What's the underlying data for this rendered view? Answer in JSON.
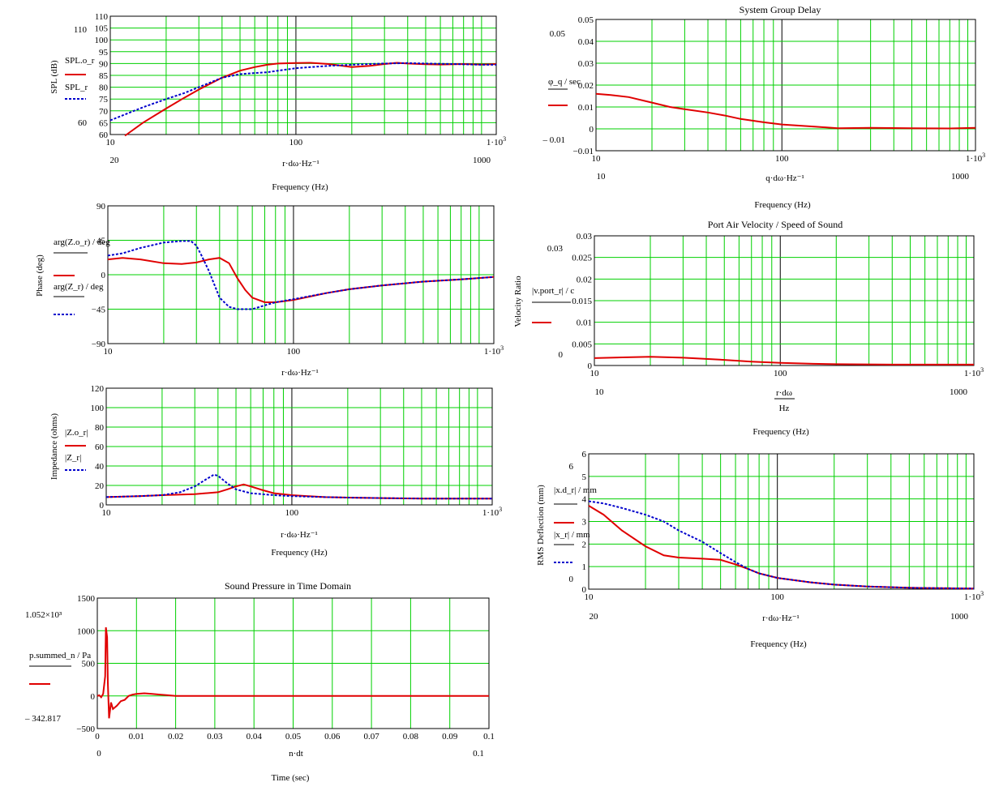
{
  "chart_data": [
    {
      "id": "spl",
      "type": "line",
      "xscale": "log",
      "xlim": [
        10,
        1200
      ],
      "ylim": [
        60,
        110
      ],
      "grid": true,
      "xticks": [
        "10",
        "100",
        "1·10³"
      ],
      "yticks": [
        "60",
        "65",
        "70",
        "75",
        "80",
        "85",
        "90",
        "95",
        "100",
        "105",
        "110"
      ],
      "ymarks": [
        "110",
        "60"
      ],
      "xmarks": [
        "20",
        "1000"
      ],
      "xlabel": "r·dω·Hz⁻¹",
      "xlabel2": "Frequency (Hz)",
      "ylabel": "SPL (dB)",
      "title": "",
      "legend": [
        "SPL.o_r",
        "SPL_r"
      ],
      "series": [
        {
          "name": "SPL.o_r",
          "color": "#e00000",
          "style": "solid",
          "x": [
            12,
            15,
            20,
            25,
            30,
            40,
            50,
            60,
            70,
            80,
            100,
            120,
            150,
            200,
            250,
            300,
            350,
            400,
            500,
            600,
            800,
            1000,
            1200
          ],
          "y": [
            59.5,
            65,
            71,
            75.5,
            79,
            84,
            87,
            88.5,
            89.5,
            90,
            90.2,
            90.3,
            89.8,
            88.5,
            89,
            89.8,
            90.3,
            90,
            89.7,
            89.6,
            89.8,
            89.6,
            89.8
          ]
        },
        {
          "name": "SPL_r",
          "color": "#0000cc",
          "style": "dashed",
          "x": [
            10,
            12,
            15,
            20,
            25,
            30,
            40,
            50,
            60,
            70,
            80,
            100,
            120,
            150,
            200,
            250,
            300,
            400,
            500,
            700,
            1000,
            1200
          ],
          "y": [
            66,
            68.5,
            71.5,
            75,
            77.5,
            80,
            84,
            85.5,
            86,
            86.3,
            87,
            88,
            88.5,
            89,
            89.5,
            89.8,
            90,
            90.2,
            90,
            89.8,
            89.5,
            89.5
          ]
        }
      ]
    },
    {
      "id": "phase",
      "type": "line",
      "xscale": "log",
      "xlim": [
        10,
        1200
      ],
      "ylim": [
        -90,
        90
      ],
      "grid": true,
      "xticks": [
        "10",
        "100",
        "1·10³"
      ],
      "yticks": [
        "-90",
        "-45",
        "0",
        "45",
        "90"
      ],
      "xlabel": "r·dω·Hz⁻¹",
      "ylabel": "Phase (deg)",
      "legend": [
        "arg(Z.o_r) / deg",
        "arg(Z_r) / deg"
      ],
      "series": [
        {
          "name": "arg(Z.o_r)/deg",
          "color": "#e00000",
          "style": "solid",
          "x": [
            10,
            12,
            15,
            20,
            25,
            30,
            35,
            40,
            45,
            50,
            55,
            60,
            70,
            80,
            100,
            150,
            200,
            300,
            500,
            800,
            1200
          ],
          "y": [
            20,
            22,
            20,
            15,
            14,
            16,
            20,
            22,
            15,
            -5,
            -20,
            -30,
            -36,
            -36,
            -33,
            -24,
            -19,
            -14,
            -9,
            -6,
            -3
          ]
        },
        {
          "name": "arg(Z_r)/deg",
          "color": "#0000cc",
          "style": "dashed",
          "x": [
            10,
            12,
            15,
            20,
            25,
            28,
            30,
            32,
            35,
            40,
            45,
            50,
            60,
            70,
            80,
            100,
            150,
            200,
            300,
            500,
            800,
            1200
          ],
          "y": [
            25,
            28,
            35,
            42,
            44,
            44,
            38,
            25,
            5,
            -30,
            -42,
            -45,
            -45,
            -40,
            -36,
            -32,
            -24,
            -19,
            -14,
            -9,
            -6,
            -3
          ]
        }
      ]
    },
    {
      "id": "impedance",
      "type": "line",
      "xscale": "log",
      "xlim": [
        10,
        1200
      ],
      "ylim": [
        0,
        120
      ],
      "grid": true,
      "xticks": [
        "10",
        "100",
        "1·10³"
      ],
      "yticks": [
        "0",
        "20",
        "40",
        "60",
        "80",
        "100",
        "120"
      ],
      "xlabel": "r·dω·Hz⁻¹",
      "xlabel2": "Frequency (Hz)",
      "ylabel": "Impedance (ohms)",
      "legend": [
        "|Z.o_r|",
        "|Z_r|"
      ],
      "series": [
        {
          "name": "|Z.o_r|",
          "color": "#e00000",
          "style": "solid",
          "x": [
            10,
            15,
            20,
            30,
            40,
            45,
            50,
            55,
            60,
            70,
            80,
            100,
            150,
            200,
            300,
            500,
            800,
            1200
          ],
          "y": [
            8,
            9,
            10,
            11,
            13,
            16,
            19,
            21,
            19,
            15,
            12,
            10,
            8,
            7.5,
            7,
            6.5,
            6.5,
            6.5
          ]
        },
        {
          "name": "|Z_r|",
          "color": "#0000cc",
          "style": "dashed",
          "x": [
            10,
            15,
            20,
            25,
            30,
            35,
            38,
            40,
            45,
            50,
            60,
            80,
            100,
            150,
            200,
            300,
            500,
            800,
            1200
          ],
          "y": [
            8,
            9,
            10,
            13,
            19,
            27,
            31,
            30,
            22,
            16,
            12,
            10,
            9,
            8,
            7.5,
            7,
            6.5,
            6.5,
            6.5
          ]
        }
      ]
    },
    {
      "id": "time",
      "type": "line",
      "xscale": "linear",
      "xlim": [
        0,
        0.1
      ],
      "ylim": [
        -500,
        1500
      ],
      "grid": true,
      "title": "Sound Pressure in Time Domain",
      "xticks": [
        "0",
        "0.01",
        "0.02",
        "0.03",
        "0.04",
        "0.05",
        "0.06",
        "0.07",
        "0.08",
        "0.09",
        "0.1"
      ],
      "yticks": [
        "-500",
        "0",
        "500",
        "1000",
        "1500"
      ],
      "ymarks": [
        "1.052×10³",
        "– 342.817"
      ],
      "xmarks": [
        "0",
        "0.1"
      ],
      "xlabel": "n·dt",
      "xlabel2": "Time (sec)",
      "legend": [
        "p.summed_n / Pa"
      ],
      "series": [
        {
          "name": "p.summed_n/Pa",
          "color": "#e00000",
          "style": "solid",
          "x": [
            0,
            0.0005,
            0.001,
            0.0015,
            0.002,
            0.0022,
            0.0025,
            0.0027,
            0.003,
            0.0035,
            0.004,
            0.005,
            0.006,
            0.007,
            0.008,
            0.009,
            0.01,
            0.012,
            0.014,
            0.016,
            0.018,
            0.02,
            0.025,
            0.1
          ],
          "y": [
            0,
            10,
            -20,
            30,
            300,
            1052,
            900,
            200,
            -343,
            -100,
            -200,
            -150,
            -80,
            -60,
            0,
            20,
            30,
            40,
            30,
            20,
            10,
            0,
            0,
            0
          ]
        }
      ]
    },
    {
      "id": "groupdelay",
      "type": "line",
      "xscale": "log",
      "xlim": [
        10,
        1100
      ],
      "ylim": [
        -0.01,
        0.05
      ],
      "grid": true,
      "title": "System Group Delay",
      "xticks": [
        "10",
        "100",
        "1·10³"
      ],
      "yticks": [
        "-0.01",
        "0",
        "0.01",
        "0.02",
        "0.03",
        "0.04",
        "0.05"
      ],
      "ymarks": [
        "0.05",
        "– 0.01"
      ],
      "xmarks": [
        "10",
        "1000"
      ],
      "xlabel": "q·dω·Hz⁻¹",
      "xlabel2": "Frequency (Hz)",
      "legend": [
        "φ_q / sec"
      ],
      "series": [
        {
          "name": "φq/sec",
          "color": "#e00000",
          "style": "solid",
          "x": [
            10,
            12,
            15,
            20,
            25,
            30,
            40,
            50,
            60,
            80,
            100,
            150,
            200,
            300,
            500,
            800,
            1100
          ],
          "y": [
            0.016,
            0.0155,
            0.0145,
            0.012,
            0.01,
            0.009,
            0.0075,
            0.006,
            0.0045,
            0.003,
            0.002,
            0.001,
            0.0003,
            0.0005,
            0.0003,
            0.0002,
            0.0005
          ]
        }
      ]
    },
    {
      "id": "portvelocity",
      "type": "line",
      "xscale": "log",
      "xlim": [
        10,
        1100
      ],
      "ylim": [
        0,
        0.03
      ],
      "grid": true,
      "title": "Port Air Velocity / Speed of Sound",
      "xticks": [
        "10",
        "100",
        "1·10³"
      ],
      "yticks": [
        "0",
        "0.005",
        "0.01",
        "0.015",
        "0.02",
        "0.025",
        "0.03"
      ],
      "ymarks": [
        "0.03",
        "0"
      ],
      "xmarks": [
        "10",
        "1000"
      ],
      "xlabel": "r·dω",
      "xlabel_den": "Hz",
      "xlabel2": "Frequency (Hz)",
      "ylabel": "Velocity Ratio",
      "legend": [
        "|v.port_r| / c"
      ],
      "series": [
        {
          "name": "|v.port_r|/c",
          "color": "#e00000",
          "style": "solid",
          "x": [
            10,
            15,
            20,
            30,
            50,
            70,
            100,
            150,
            200,
            400,
            700,
            1100
          ],
          "y": [
            0.0017,
            0.0019,
            0.002,
            0.0018,
            0.0013,
            0.0009,
            0.0006,
            0.0004,
            0.0003,
            0.0002,
            0.0002,
            0.0002
          ]
        }
      ]
    },
    {
      "id": "deflection",
      "type": "line",
      "xscale": "log",
      "xlim": [
        10,
        1100
      ],
      "ylim": [
        0,
        6
      ],
      "grid": true,
      "xticks": [
        "10",
        "100",
        "1·10³"
      ],
      "yticks": [
        "0",
        "1",
        "2",
        "3",
        "4",
        "5",
        "6"
      ],
      "ymarks": [
        "6",
        "0"
      ],
      "xmarks": [
        "20",
        "1000"
      ],
      "xlabel": "r·dω·Hz⁻¹",
      "xlabel2": "Frequency (Hz)",
      "ylabel": "RMS Deflection (mm)",
      "legend": [
        "|x.d_r| / mm",
        "|x_r| / mm"
      ],
      "series": [
        {
          "name": "|x.d_r|/mm",
          "color": "#e00000",
          "style": "solid",
          "x": [
            10,
            12,
            15,
            20,
            25,
            30,
            40,
            50,
            60,
            70,
            80,
            100,
            150,
            200,
            300,
            500,
            800,
            1100
          ],
          "y": [
            3.7,
            3.3,
            2.6,
            1.9,
            1.5,
            1.4,
            1.35,
            1.3,
            1.1,
            0.9,
            0.7,
            0.5,
            0.3,
            0.2,
            0.12,
            0.06,
            0.04,
            0.03
          ]
        },
        {
          "name": "|x_r|/mm",
          "color": "#0000cc",
          "style": "dashed",
          "x": [
            10,
            12,
            15,
            20,
            25,
            30,
            40,
            50,
            60,
            70,
            80,
            100,
            150,
            200,
            300,
            500,
            800,
            1100
          ],
          "y": [
            3.9,
            3.8,
            3.6,
            3.3,
            3.0,
            2.6,
            2.1,
            1.6,
            1.2,
            0.9,
            0.7,
            0.5,
            0.3,
            0.2,
            0.12,
            0.06,
            0.04,
            0.03
          ]
        }
      ]
    }
  ]
}
